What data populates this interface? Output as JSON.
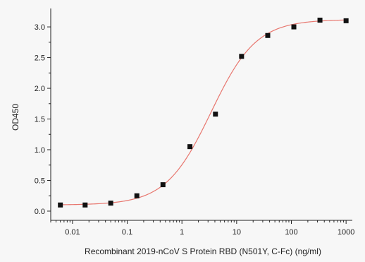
{
  "chart_data": {
    "type": "scatter",
    "title": "",
    "xlabel": "Recombinant 2019-nCoV S Protein RBD (N501Y, C-Fc) (ng/ml)",
    "ylabel": "OD450",
    "x_scale": "log",
    "xlim": [
      0.004,
      1300
    ],
    "ylim": [
      -0.15,
      3.3
    ],
    "x_ticks": [
      {
        "value": 0.01,
        "label": "0.01"
      },
      {
        "value": 0.1,
        "label": "0.1"
      },
      {
        "value": 1,
        "label": "1"
      },
      {
        "value": 10,
        "label": "10"
      },
      {
        "value": 100,
        "label": "100"
      },
      {
        "value": 1000,
        "label": "1000"
      }
    ],
    "y_ticks": [
      {
        "value": 0.0,
        "label": "0.0"
      },
      {
        "value": 0.5,
        "label": "0.5"
      },
      {
        "value": 1.0,
        "label": "1.0"
      },
      {
        "value": 1.5,
        "label": "1.5"
      },
      {
        "value": 2.0,
        "label": "2.0"
      },
      {
        "value": 2.5,
        "label": "2.5"
      },
      {
        "value": 3.0,
        "label": "3.0"
      }
    ],
    "points": [
      {
        "x": 0.006,
        "y": 0.1
      },
      {
        "x": 0.017,
        "y": 0.1
      },
      {
        "x": 0.05,
        "y": 0.13
      },
      {
        "x": 0.15,
        "y": 0.25
      },
      {
        "x": 0.45,
        "y": 0.43
      },
      {
        "x": 1.4,
        "y": 1.05
      },
      {
        "x": 4.1,
        "y": 1.58
      },
      {
        "x": 12.3,
        "y": 2.52
      },
      {
        "x": 37,
        "y": 2.86
      },
      {
        "x": 111,
        "y": 3.0
      },
      {
        "x": 333,
        "y": 3.11
      },
      {
        "x": 1000,
        "y": 3.1
      }
    ],
    "fit": {
      "model": "4PL",
      "bottom": 0.1,
      "top": 3.12,
      "ec50": 3.4,
      "hill": 1.05
    },
    "grid": false,
    "colors": {
      "points": "#111111",
      "curve": "#e8776f",
      "background": "#f7f7f7"
    }
  }
}
